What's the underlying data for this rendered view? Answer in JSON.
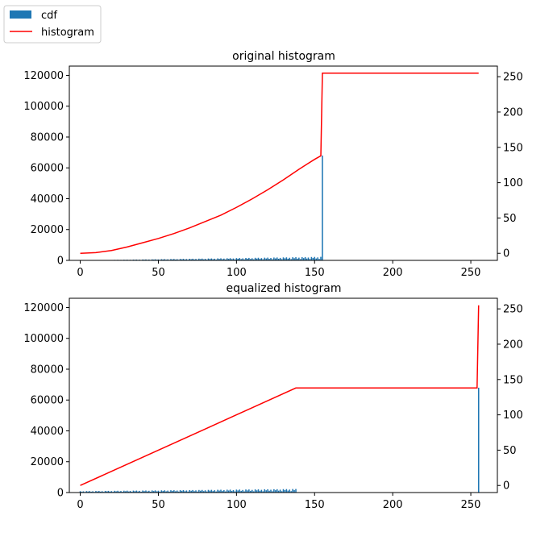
{
  "figure": {
    "legend": {
      "placement": "top-left, outside axes",
      "entries": [
        {
          "label": "cdf",
          "kind": "bar",
          "color": "#1f77b4"
        },
        {
          "label": "histogram",
          "kind": "line",
          "color": "#ff0000"
        }
      ]
    }
  },
  "chart_data": [
    {
      "type": "bar",
      "title": "original histogram",
      "xlabel": "",
      "ylabel": "",
      "xlim": [
        -7,
        267
      ],
      "xticks": [
        0,
        50,
        100,
        150,
        200,
        250
      ],
      "ylim": [
        0,
        126000
      ],
      "yticks": [
        0,
        20000,
        40000,
        60000,
        80000,
        100000,
        120000
      ],
      "secondary_ylim": [
        -10,
        265
      ],
      "secondary_yticks": [
        0,
        50,
        100,
        150,
        200,
        250
      ],
      "grid": false,
      "bar_color": "#1f77b4",
      "line_color": "#ff0000",
      "histogram_bars": {
        "x_start": 21,
        "x_end": 154,
        "height_start": 300,
        "height_end": 2300,
        "tall_bar": {
          "x": 155,
          "height": 68000
        }
      },
      "cdf_line": [
        [
          0,
          0
        ],
        [
          10,
          1
        ],
        [
          20,
          4
        ],
        [
          30,
          9
        ],
        [
          40,
          15
        ],
        [
          50,
          21
        ],
        [
          60,
          28
        ],
        [
          70,
          36
        ],
        [
          80,
          45
        ],
        [
          90,
          54
        ],
        [
          100,
          65
        ],
        [
          110,
          77
        ],
        [
          120,
          90
        ],
        [
          130,
          104
        ],
        [
          140,
          119
        ],
        [
          150,
          133
        ],
        [
          154,
          138
        ],
        [
          155,
          255
        ],
        [
          255,
          255
        ]
      ]
    },
    {
      "type": "bar",
      "title": "equalized histogram",
      "xlabel": "",
      "ylabel": "",
      "xlim": [
        -7,
        267
      ],
      "xticks": [
        0,
        50,
        100,
        150,
        200,
        250
      ],
      "ylim": [
        0,
        126000
      ],
      "yticks": [
        0,
        20000,
        40000,
        60000,
        80000,
        100000,
        120000
      ],
      "secondary_ylim": [
        -10,
        265
      ],
      "secondary_yticks": [
        0,
        50,
        100,
        150,
        200,
        250
      ],
      "grid": false,
      "bar_color": "#1f77b4",
      "line_color": "#ff0000",
      "histogram_bars": {
        "x_start": 0,
        "x_end": 138,
        "height_start": 900,
        "height_end": 2300,
        "tall_bar": {
          "x": 255,
          "height": 68000
        }
      },
      "cdf_line": [
        [
          0,
          0
        ],
        [
          20,
          20
        ],
        [
          40,
          40
        ],
        [
          60,
          60
        ],
        [
          80,
          80
        ],
        [
          100,
          100
        ],
        [
          120,
          120
        ],
        [
          138,
          138
        ],
        [
          254,
          138
        ],
        [
          255,
          255
        ]
      ]
    }
  ]
}
